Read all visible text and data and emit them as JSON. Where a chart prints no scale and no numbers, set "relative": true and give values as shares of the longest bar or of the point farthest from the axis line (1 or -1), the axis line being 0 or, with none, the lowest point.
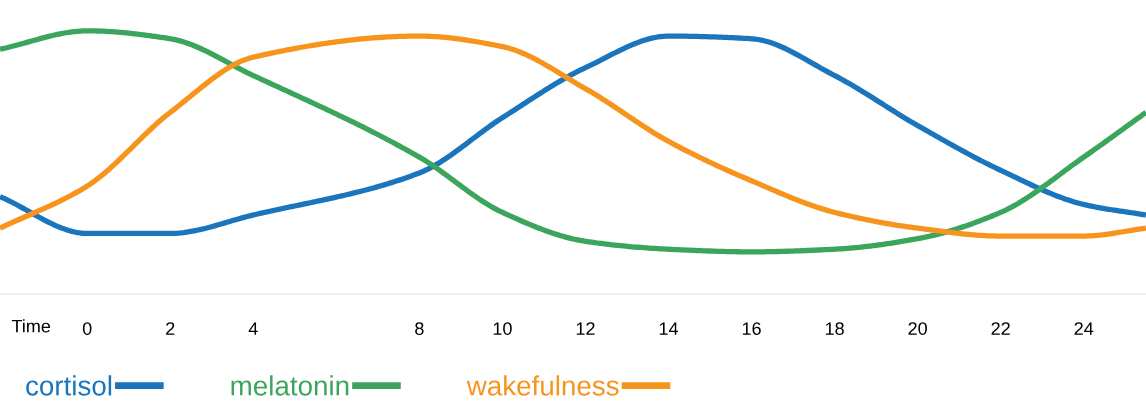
{
  "chart_data": {
    "type": "line",
    "relative": true,
    "xlabel": "Time",
    "x": [
      -2.1,
      0,
      2,
      4,
      8,
      10,
      12,
      14,
      16,
      18,
      20,
      22,
      24,
      25.5
    ],
    "xlim": [
      -2.1,
      25.5
    ],
    "xticks": [
      0,
      2,
      4,
      8,
      10,
      12,
      14,
      16,
      18,
      20,
      22,
      24
    ],
    "series": [
      {
        "name": "cortisol",
        "color": "#1a75bc",
        "values": [
          0.37,
          0.23,
          0.23,
          0.3,
          0.46,
          0.67,
          0.86,
          0.98,
          0.97,
          0.83,
          0.64,
          0.47,
          0.34,
          0.3
        ]
      },
      {
        "name": "melatonin",
        "color": "#3ba55c",
        "values": [
          0.93,
          1.0,
          0.97,
          0.83,
          0.52,
          0.31,
          0.2,
          0.17,
          0.16,
          0.17,
          0.21,
          0.31,
          0.52,
          0.69
        ]
      },
      {
        "name": "wakefulness",
        "color": "#f7941d",
        "values": [
          0.25,
          0.41,
          0.69,
          0.9,
          0.98,
          0.94,
          0.78,
          0.58,
          0.43,
          0.31,
          0.25,
          0.22,
          0.22,
          0.25
        ]
      }
    ],
    "legend": "bottom left",
    "marker": "none",
    "line_style": "solid"
  }
}
